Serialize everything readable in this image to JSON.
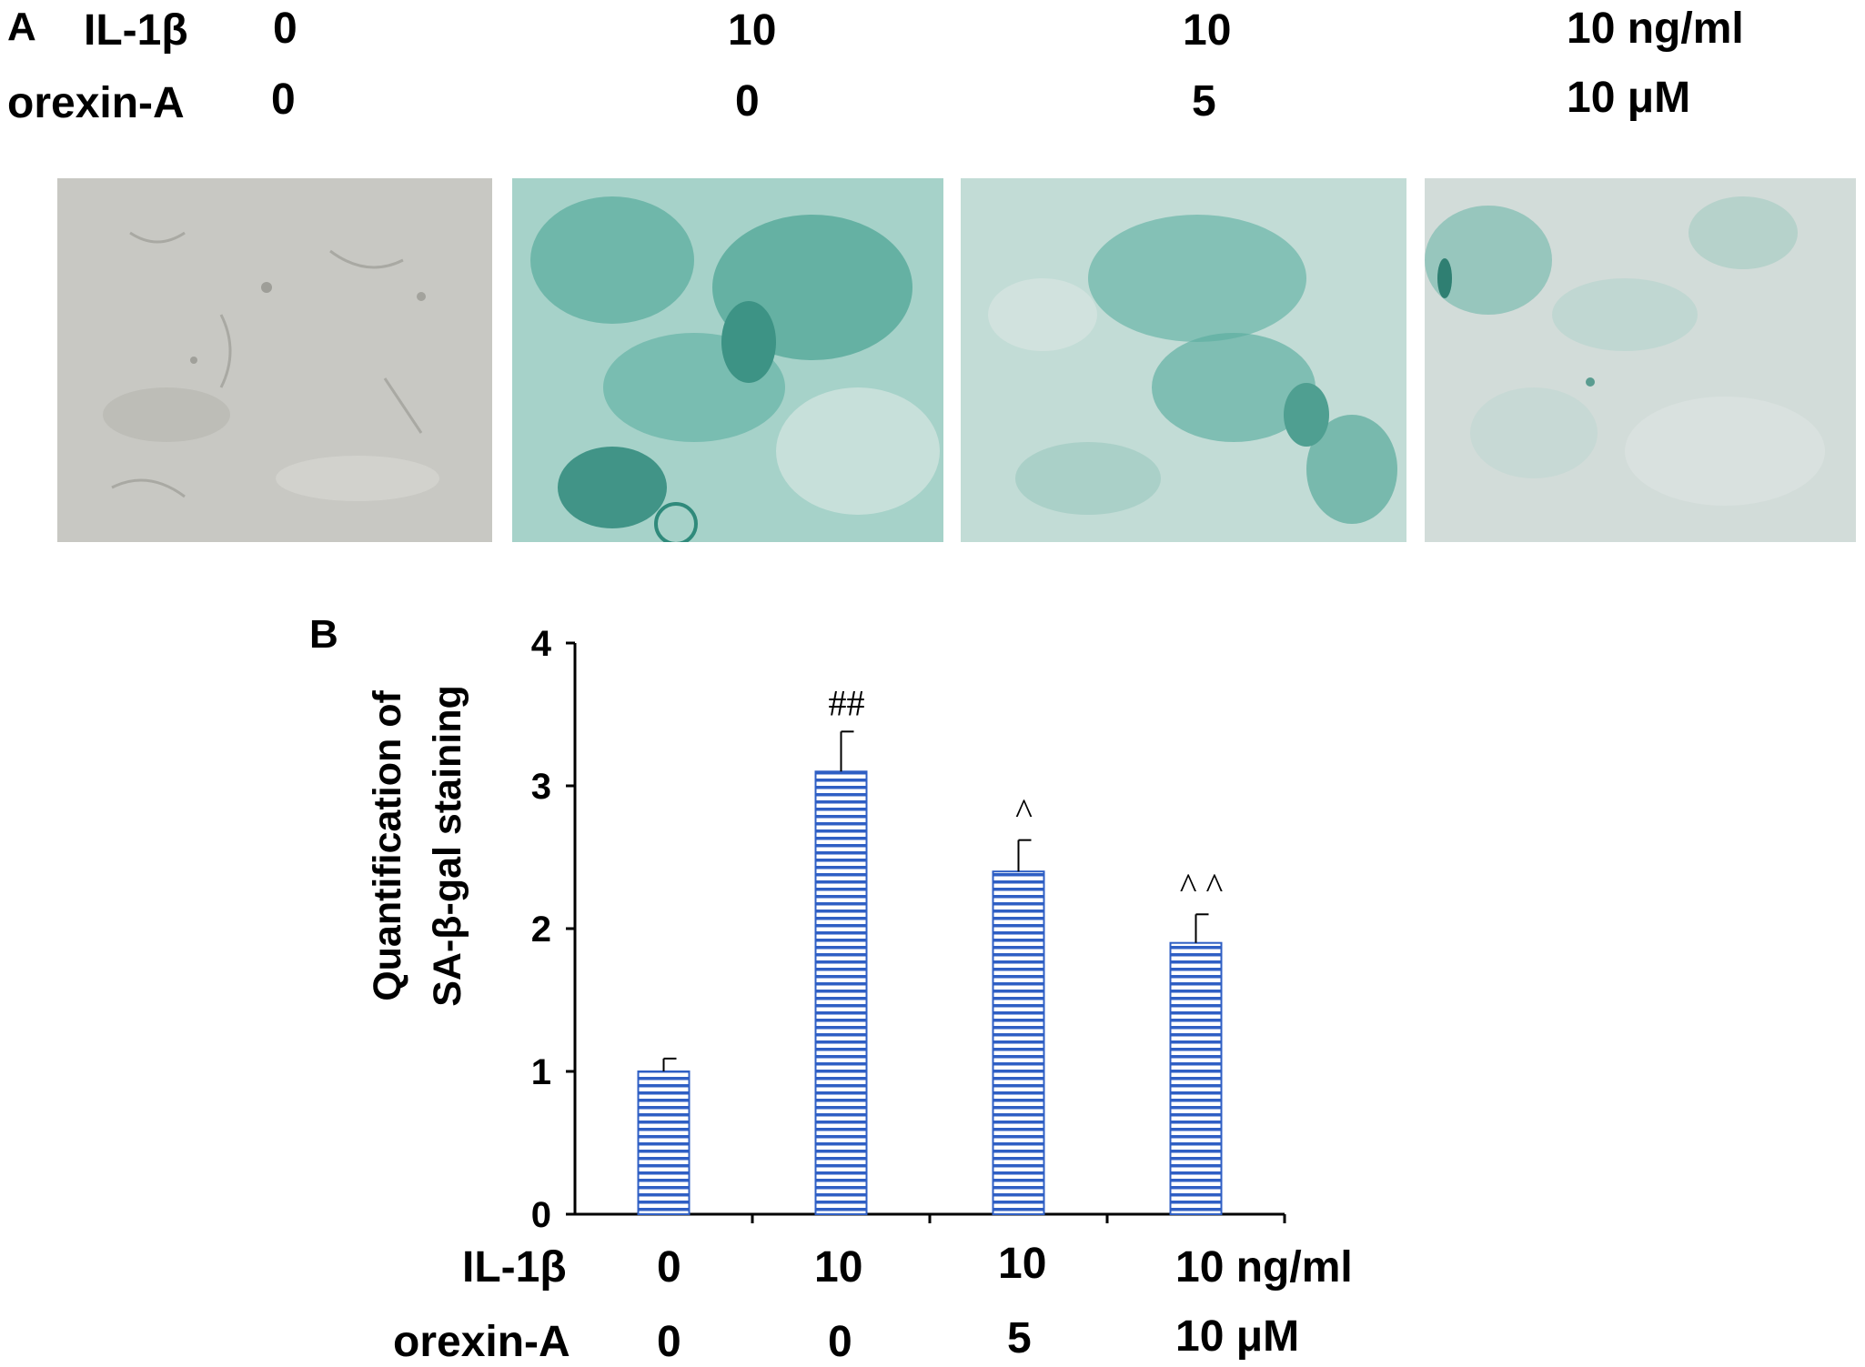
{
  "panel_a": {
    "letter": "A",
    "rows": [
      {
        "label": "IL-1β",
        "values": [
          "0",
          "10",
          "10",
          "10 ng/ml"
        ]
      },
      {
        "label": "orexin-A",
        "values": [
          "0",
          "0",
          "5",
          "10 μM"
        ]
      }
    ],
    "micrographs": [
      {
        "stain": "none",
        "base_color": "#c9c9c4",
        "stain_color": "#3a9a8c"
      },
      {
        "stain": "strong",
        "base_color": "#9fcfc5",
        "stain_color": "#2f8f80"
      },
      {
        "stain": "moderate",
        "base_color": "#b9d9d2",
        "stain_color": "#3a9a8c"
      },
      {
        "stain": "weak",
        "base_color": "#cfdcd8",
        "stain_color": "#5aa89c"
      }
    ]
  },
  "panel_b": {
    "letter": "B",
    "ylabel_lines": [
      "Quantification of",
      "SA-β-gal staining"
    ],
    "x_rows": [
      {
        "label": "IL-1β",
        "values": [
          "0",
          "10",
          "10",
          "10 ng/ml"
        ]
      },
      {
        "label": "orexin-A",
        "values": [
          "0",
          "0",
          "5",
          "10 μM"
        ]
      }
    ]
  },
  "chart_data": {
    "type": "bar",
    "title": "",
    "xlabel": "",
    "ylabel": "Quantification of SA-β-gal staining",
    "categories": [
      "IL-1β 0 / orexin-A 0",
      "IL-1β 10 / orexin-A 0",
      "IL-1β 10 / orexin-A 5",
      "IL-1β 10 ng/ml / orexin-A 10 μM"
    ],
    "values": [
      1.0,
      3.1,
      2.4,
      1.9
    ],
    "errors": [
      0.09,
      0.28,
      0.22,
      0.2
    ],
    "annotations": [
      "",
      "##",
      "^",
      "^ ^"
    ],
    "ylim": [
      0,
      4
    ],
    "yticks": [
      0,
      1,
      2,
      3,
      4
    ],
    "bar_fill": "horizontal-stripes",
    "bar_color": "#2f5fc4",
    "grid": false
  }
}
